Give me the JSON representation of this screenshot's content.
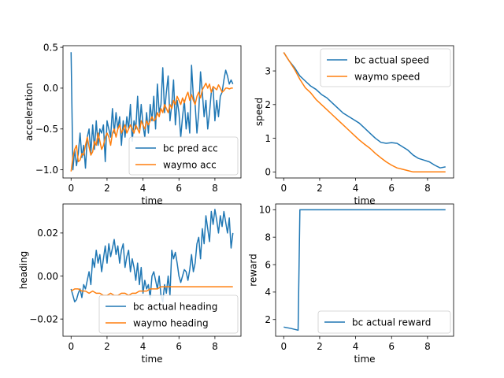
{
  "chart_data": [
    {
      "type": "line",
      "xlabel": "time",
      "ylabel": "acceleration",
      "xlim": [
        -0.45,
        9.45
      ],
      "ylim": [
        -1.1,
        0.52
      ],
      "xticks": [
        0,
        2,
        4,
        6,
        8
      ],
      "xtick_labels": [
        "0",
        "2",
        "4",
        "6",
        "8"
      ],
      "yticks": [
        -1.0,
        -0.5,
        0.0,
        0.5
      ],
      "ytick_labels": [
        "−1.0",
        "−0.5",
        "0.0",
        "0.5"
      ],
      "legend": "lower-right",
      "series": [
        {
          "name": "bc pred acc",
          "color": "#1f77b4",
          "x": [
            0,
            0.1,
            0.2,
            0.3,
            0.4,
            0.5,
            0.6,
            0.7,
            0.8,
            0.9,
            1.0,
            1.1,
            1.2,
            1.3,
            1.4,
            1.5,
            1.6,
            1.7,
            1.8,
            1.9,
            2.0,
            2.1,
            2.2,
            2.3,
            2.4,
            2.5,
            2.6,
            2.7,
            2.8,
            2.9,
            3.0,
            3.1,
            3.2,
            3.3,
            3.4,
            3.5,
            3.6,
            3.7,
            3.8,
            3.9,
            4.0,
            4.1,
            4.2,
            4.3,
            4.4,
            4.5,
            4.6,
            4.7,
            4.8,
            4.9,
            5.0,
            5.1,
            5.2,
            5.3,
            5.4,
            5.5,
            5.6,
            5.7,
            5.8,
            5.9,
            6.0,
            6.1,
            6.2,
            6.3,
            6.4,
            6.5,
            6.6,
            6.7,
            6.8,
            6.9,
            7.0,
            7.1,
            7.2,
            7.3,
            7.4,
            7.5,
            7.6,
            7.7,
            7.8,
            7.9,
            8.0,
            8.1,
            8.2,
            8.3,
            8.4,
            8.5,
            8.6,
            8.7,
            8.8,
            8.9,
            9.0
          ],
          "y": [
            0.44,
            -1.0,
            -0.75,
            -0.95,
            -0.8,
            -0.55,
            -0.85,
            -0.7,
            -0.98,
            -0.6,
            -0.5,
            -0.8,
            -0.45,
            -0.75,
            -0.4,
            -0.7,
            -0.5,
            -0.55,
            -0.45,
            -0.9,
            -0.4,
            -0.5,
            -0.6,
            -0.25,
            -0.55,
            -0.3,
            -0.5,
            -0.35,
            -0.7,
            -0.4,
            -0.6,
            -0.35,
            -0.5,
            -0.2,
            -0.65,
            -0.4,
            -0.5,
            -0.1,
            -0.5,
            -0.2,
            -0.45,
            -0.6,
            -0.3,
            -0.55,
            -0.2,
            -0.4,
            -0.1,
            -0.5,
            0.05,
            -0.3,
            -0.2,
            0.25,
            -0.3,
            -0.05,
            0.15,
            -0.4,
            -0.2,
            0.1,
            -0.45,
            -0.15,
            -0.3,
            -0.6,
            -0.35,
            -0.15,
            -0.5,
            -0.3,
            -0.55,
            0.28,
            -0.1,
            -0.2,
            -0.55,
            -0.3,
            0.2,
            -0.05,
            -0.35,
            -0.15,
            -0.5,
            -0.3,
            -0.05,
            0.0,
            -0.4,
            -0.15,
            -0.35,
            -0.1,
            -0.05,
            0.1,
            0.22,
            0.15,
            0.05,
            0.1,
            0.05
          ]
        },
        {
          "name": "waymo acc",
          "color": "#ff7f0e",
          "x": [
            0,
            0.1,
            0.2,
            0.3,
            0.4,
            0.5,
            0.6,
            0.7,
            0.8,
            0.9,
            1.0,
            1.1,
            1.2,
            1.3,
            1.4,
            1.5,
            1.6,
            1.7,
            1.8,
            1.9,
            2.0,
            2.1,
            2.2,
            2.3,
            2.4,
            2.5,
            2.6,
            2.7,
            2.8,
            2.9,
            3.0,
            3.1,
            3.2,
            3.3,
            3.4,
            3.5,
            3.6,
            3.7,
            3.8,
            3.9,
            4.0,
            4.1,
            4.2,
            4.3,
            4.4,
            4.5,
            4.6,
            4.7,
            4.8,
            4.9,
            5.0,
            5.1,
            5.2,
            5.3,
            5.4,
            5.5,
            5.6,
            5.7,
            5.8,
            5.9,
            6.0,
            6.1,
            6.2,
            6.3,
            6.4,
            6.5,
            6.6,
            6.7,
            6.8,
            6.9,
            7.0,
            7.1,
            7.2,
            7.3,
            7.4,
            7.5,
            7.6,
            7.7,
            7.8,
            7.9,
            8.0,
            8.1,
            8.2,
            8.3,
            8.4,
            8.5,
            8.6,
            8.7,
            8.8,
            8.9,
            9.0
          ],
          "y": [
            -1.02,
            -0.85,
            -0.75,
            -0.7,
            -0.9,
            -0.88,
            -0.8,
            -0.82,
            -0.7,
            -0.6,
            -0.72,
            -0.82,
            -0.78,
            -0.65,
            -0.7,
            -0.55,
            -0.65,
            -0.75,
            -0.7,
            -0.6,
            -0.55,
            -0.6,
            -0.7,
            -0.55,
            -0.5,
            -0.6,
            -0.5,
            -0.45,
            -0.55,
            -0.5,
            -0.45,
            -0.55,
            -0.5,
            -0.45,
            -0.5,
            -0.55,
            -0.45,
            -0.5,
            -0.55,
            -0.4,
            -0.45,
            -0.5,
            -0.4,
            -0.45,
            -0.4,
            -0.35,
            -0.4,
            -0.38,
            -0.3,
            -0.35,
            -0.25,
            -0.3,
            -0.2,
            -0.25,
            -0.3,
            -0.2,
            -0.25,
            -0.15,
            -0.2,
            -0.1,
            -0.15,
            -0.2,
            -0.12,
            -0.18,
            -0.1,
            -0.05,
            -0.15,
            -0.08,
            -0.15,
            -0.2,
            -0.1,
            -0.05,
            -0.12,
            -0.02,
            0.02,
            0.06,
            0.0,
            0.05,
            -0.05,
            0.02,
            0.0,
            -0.02,
            0.04,
            0.0,
            -0.05,
            -0.03,
            0.0,
            0.0,
            -0.01,
            0.0,
            0.0
          ]
        }
      ]
    },
    {
      "type": "line",
      "xlabel": "time",
      "ylabel": "speed",
      "xlim": [
        -0.45,
        9.45
      ],
      "ylim": [
        -0.18,
        3.75
      ],
      "xticks": [
        0,
        2,
        4,
        6,
        8
      ],
      "xtick_labels": [
        "0",
        "2",
        "4",
        "6",
        "8"
      ],
      "yticks": [
        0,
        1,
        2,
        3
      ],
      "ytick_labels": [
        "0",
        "1",
        "2",
        "3"
      ],
      "legend": "upper-right",
      "series": [
        {
          "name": "bc actual speed",
          "color": "#1f77b4",
          "x": [
            0,
            0.3,
            0.6,
            0.9,
            1.2,
            1.5,
            1.8,
            2.1,
            2.4,
            2.7,
            3.0,
            3.3,
            3.6,
            3.9,
            4.2,
            4.5,
            4.8,
            5.1,
            5.4,
            5.7,
            6.0,
            6.3,
            6.6,
            6.9,
            7.2,
            7.5,
            7.8,
            8.1,
            8.4,
            8.7,
            9.0
          ],
          "y": [
            3.55,
            3.3,
            3.1,
            2.85,
            2.7,
            2.55,
            2.45,
            2.3,
            2.2,
            2.05,
            1.9,
            1.75,
            1.65,
            1.55,
            1.45,
            1.3,
            1.15,
            1.0,
            0.88,
            0.85,
            0.87,
            0.85,
            0.75,
            0.65,
            0.5,
            0.4,
            0.35,
            0.3,
            0.2,
            0.12,
            0.15
          ]
        },
        {
          "name": "waymo speed",
          "color": "#ff7f0e",
          "x": [
            0,
            0.3,
            0.6,
            0.9,
            1.2,
            1.5,
            1.8,
            2.1,
            2.4,
            2.7,
            3.0,
            3.3,
            3.6,
            3.9,
            4.2,
            4.5,
            4.8,
            5.1,
            5.4,
            5.7,
            6.0,
            6.3,
            6.6,
            6.9,
            7.2,
            7.5,
            7.8,
            8.1,
            8.4,
            8.7,
            9.0
          ],
          "y": [
            3.55,
            3.3,
            3.05,
            2.75,
            2.5,
            2.35,
            2.15,
            2.0,
            1.85,
            1.7,
            1.55,
            1.4,
            1.25,
            1.1,
            0.95,
            0.82,
            0.7,
            0.55,
            0.42,
            0.3,
            0.2,
            0.12,
            0.08,
            0.04,
            0.0,
            0.0,
            0.0,
            0.0,
            0.0,
            0.0,
            0.0
          ]
        }
      ]
    },
    {
      "type": "line",
      "xlabel": "time",
      "ylabel": "heading",
      "xlim": [
        -0.45,
        9.45
      ],
      "ylim": [
        -0.028,
        0.0335
      ],
      "xticks": [
        0,
        2,
        4,
        6,
        8
      ],
      "xtick_labels": [
        "0",
        "2",
        "4",
        "6",
        "8"
      ],
      "yticks": [
        -0.02,
        0.0,
        0.02
      ],
      "ytick_labels": [
        "−0.02",
        "0.00",
        "0.02"
      ],
      "legend": "lower-right",
      "series": [
        {
          "name": "bc actual heading",
          "color": "#1f77b4",
          "x": [
            0,
            0.1,
            0.2,
            0.3,
            0.4,
            0.5,
            0.6,
            0.7,
            0.8,
            0.9,
            1.0,
            1.1,
            1.2,
            1.3,
            1.4,
            1.5,
            1.6,
            1.7,
            1.8,
            1.9,
            2.0,
            2.1,
            2.2,
            2.3,
            2.4,
            2.5,
            2.6,
            2.7,
            2.8,
            2.9,
            3.0,
            3.1,
            3.2,
            3.3,
            3.4,
            3.5,
            3.6,
            3.7,
            3.8,
            3.9,
            4.0,
            4.1,
            4.2,
            4.3,
            4.4,
            4.5,
            4.6,
            4.7,
            4.8,
            4.9,
            5.0,
            5.1,
            5.2,
            5.3,
            5.4,
            5.5,
            5.6,
            5.7,
            5.8,
            5.9,
            6.0,
            6.1,
            6.2,
            6.3,
            6.4,
            6.5,
            6.6,
            6.7,
            6.8,
            6.9,
            7.0,
            7.1,
            7.2,
            7.3,
            7.4,
            7.5,
            7.6,
            7.7,
            7.8,
            7.9,
            8.0,
            8.1,
            8.2,
            8.3,
            8.4,
            8.5,
            8.6,
            8.7,
            8.8,
            8.9,
            9.0
          ],
          "y": [
            -0.006,
            -0.009,
            -0.012,
            -0.011,
            -0.008,
            -0.006,
            -0.01,
            -0.004,
            -0.006,
            -0.002,
            0.002,
            -0.004,
            0.008,
            0.004,
            0.012,
            0.006,
            0.01,
            0.002,
            0.008,
            0.014,
            0.006,
            0.015,
            0.009,
            0.013,
            0.017,
            0.01,
            0.014,
            0.006,
            0.012,
            0.015,
            0.004,
            0.009,
            0.012,
            0.002,
            0.008,
            0.004,
            -0.002,
            0.006,
            -0.004,
            0.004,
            -0.008,
            -0.002,
            -0.006,
            -0.004,
            -0.01,
            0.0,
            0.002,
            -0.002,
            -0.006,
            0.0,
            -0.009,
            -0.012,
            -0.004,
            -0.008,
            0.0,
            -0.009,
            0.012,
            0.008,
            0.011,
            0.006,
            0.0,
            -0.003,
            0.0,
            0.003,
            0.002,
            -0.002,
            0.003,
            0.01,
            0.002,
            0.006,
            0.015,
            0.018,
            0.008,
            0.022,
            0.015,
            0.028,
            0.022,
            0.016,
            0.03,
            0.024,
            0.031,
            0.026,
            0.02,
            0.028,
            0.023,
            0.03,
            0.025,
            0.02,
            0.027,
            0.013,
            0.02
          ]
        },
        {
          "name": "waymo heading",
          "color": "#ff7f0e",
          "x": [
            0,
            0.2,
            0.4,
            0.6,
            0.8,
            1.0,
            1.2,
            1.4,
            1.6,
            1.8,
            2.0,
            2.2,
            2.4,
            2.6,
            2.8,
            3.0,
            3.2,
            3.4,
            3.6,
            3.8,
            4.0,
            4.2,
            4.4,
            4.6,
            4.8,
            5.0,
            5.2,
            5.4,
            5.6,
            5.8,
            6.0,
            6.5,
            7.0,
            7.5,
            8.0,
            8.5,
            9.0
          ],
          "y": [
            -0.007,
            -0.006,
            -0.006,
            -0.007,
            -0.007,
            -0.008,
            -0.007,
            -0.008,
            -0.008,
            -0.009,
            -0.009,
            -0.008,
            -0.009,
            -0.009,
            -0.008,
            -0.008,
            -0.009,
            -0.008,
            -0.008,
            -0.007,
            -0.007,
            -0.007,
            -0.006,
            -0.006,
            -0.006,
            -0.005,
            -0.005,
            -0.005,
            -0.005,
            -0.005,
            -0.005,
            -0.005,
            -0.005,
            -0.005,
            -0.005,
            -0.005,
            -0.005
          ]
        }
      ]
    },
    {
      "type": "line",
      "xlabel": "time",
      "ylabel": "reward",
      "xlim": [
        -0.45,
        9.45
      ],
      "ylim": [
        0.78,
        10.42
      ],
      "xticks": [
        0,
        2,
        4,
        6,
        8
      ],
      "xtick_labels": [
        "0",
        "2",
        "4",
        "6",
        "8"
      ],
      "yticks": [
        2,
        4,
        6,
        8,
        10
      ],
      "ytick_labels": [
        "2",
        "4",
        "6",
        "8",
        "10"
      ],
      "legend": "lower-right",
      "series": [
        {
          "name": "bc actual reward",
          "color": "#1f77b4",
          "x": [
            0,
            0.4,
            0.8,
            0.9,
            9.0
          ],
          "y": [
            1.45,
            1.35,
            1.22,
            10.0,
            10.0
          ]
        }
      ]
    }
  ]
}
